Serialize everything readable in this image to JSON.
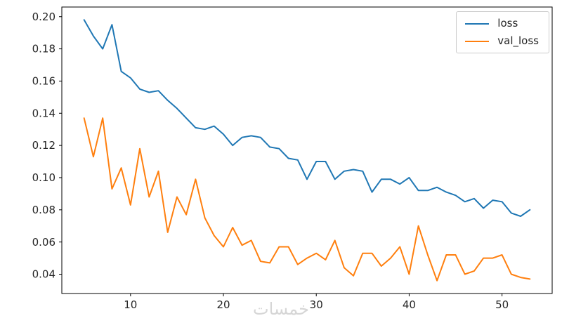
{
  "figure": {
    "background": "#ffffff",
    "watermark": "خمسات",
    "spine_color": "#000000",
    "tick_label_color": "#262626"
  },
  "chart_data": {
    "type": "line",
    "title": "",
    "xlabel": "",
    "ylabel": "",
    "xlim": [
      2.6,
      55.4
    ],
    "ylim": [
      0.028,
      0.206
    ],
    "grid": false,
    "legend_position": "upper right",
    "x_ticks": [
      {
        "v": 10,
        "label": "10"
      },
      {
        "v": 20,
        "label": "20"
      },
      {
        "v": 30,
        "label": "30"
      },
      {
        "v": 40,
        "label": "40"
      },
      {
        "v": 50,
        "label": "50"
      }
    ],
    "y_ticks": [
      {
        "v": 0.04,
        "label": "0.04"
      },
      {
        "v": 0.06,
        "label": "0.06"
      },
      {
        "v": 0.08,
        "label": "0.08"
      },
      {
        "v": 0.1,
        "label": "0.10"
      },
      {
        "v": 0.12,
        "label": "0.12"
      },
      {
        "v": 0.14,
        "label": "0.14"
      },
      {
        "v": 0.16,
        "label": "0.16"
      },
      {
        "v": 0.18,
        "label": "0.18"
      },
      {
        "v": 0.2,
        "label": "0.20"
      }
    ],
    "x": [
      5,
      6,
      7,
      8,
      9,
      10,
      11,
      12,
      13,
      14,
      15,
      16,
      17,
      18,
      19,
      20,
      21,
      22,
      23,
      24,
      25,
      26,
      27,
      28,
      29,
      30,
      31,
      32,
      33,
      34,
      35,
      36,
      37,
      38,
      39,
      40,
      41,
      42,
      43,
      44,
      45,
      46,
      47,
      48,
      49,
      50,
      51,
      52,
      53
    ],
    "series": [
      {
        "name": "loss",
        "color": "#1f77b4",
        "values": [
          0.198,
          0.188,
          0.18,
          0.195,
          0.166,
          0.162,
          0.155,
          0.153,
          0.154,
          0.148,
          0.143,
          0.137,
          0.131,
          0.13,
          0.132,
          0.127,
          0.12,
          0.125,
          0.126,
          0.125,
          0.119,
          0.118,
          0.112,
          0.111,
          0.099,
          0.11,
          0.11,
          0.099,
          0.104,
          0.105,
          0.104,
          0.091,
          0.099,
          0.099,
          0.096,
          0.1,
          0.092,
          0.092,
          0.094,
          0.091,
          0.089,
          0.085,
          0.087,
          0.081,
          0.086,
          0.085,
          0.078,
          0.076,
          0.08
        ]
      },
      {
        "name": "val_loss",
        "color": "#ff7f0e",
        "values": [
          0.137,
          0.113,
          0.137,
          0.093,
          0.106,
          0.083,
          0.118,
          0.088,
          0.104,
          0.066,
          0.088,
          0.077,
          0.099,
          0.075,
          0.064,
          0.057,
          0.069,
          0.058,
          0.061,
          0.048,
          0.047,
          0.057,
          0.057,
          0.046,
          0.05,
          0.053,
          0.049,
          0.061,
          0.044,
          0.039,
          0.053,
          0.053,
          0.045,
          0.05,
          0.057,
          0.04,
          0.07,
          0.052,
          0.036,
          0.052,
          0.052,
          0.04,
          0.042,
          0.05,
          0.05,
          0.052,
          0.04,
          0.038,
          0.037
        ]
      }
    ]
  }
}
